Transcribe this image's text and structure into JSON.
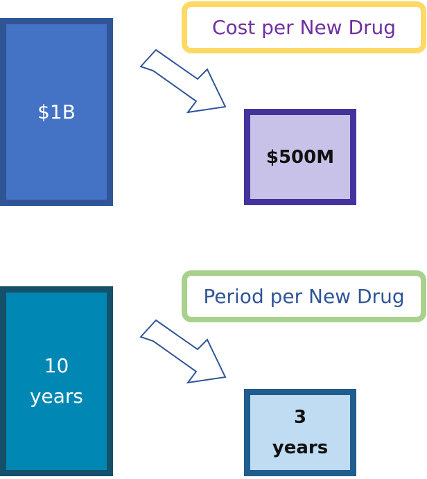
{
  "cost": {
    "before": "$1B",
    "after": "$500M",
    "label": "Cost per New Drug"
  },
  "period": {
    "before": "10\nyears",
    "after": "3\nyears",
    "label": "Period per New Drug"
  },
  "colors": {
    "cost_before_fill": "#4472c4",
    "cost_after_fill": "#c9c2e8",
    "cost_label_border": "#ffd966",
    "period_before_fill": "#0087b4",
    "period_after_fill": "#bfdcf3",
    "period_label_border": "#a9d18e"
  }
}
